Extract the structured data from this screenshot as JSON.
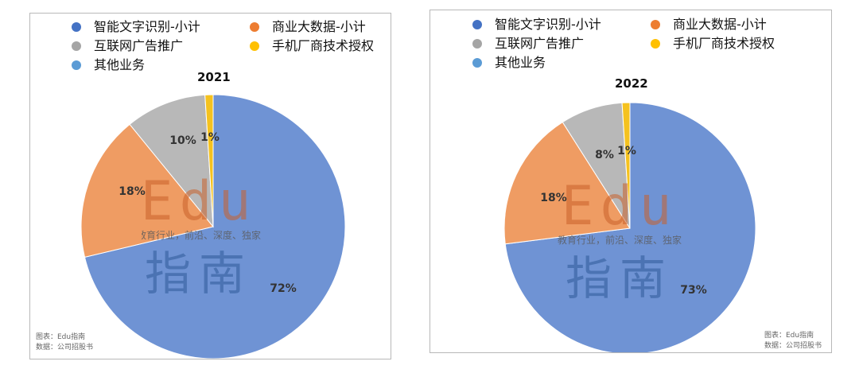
{
  "colors": {
    "slice_1": "#6f93d4",
    "slice_2": "#ef9c63",
    "slice_3": "#b8b8b8",
    "slice_4": "#f5c21f",
    "dot_1": "#4472c4",
    "dot_2": "#ed7d31",
    "dot_3": "#a5a5a5",
    "dot_4": "#ffc000",
    "dot_5": "#5b9bd5"
  },
  "watermark": {
    "brand": "Edu",
    "tagline": "教育行业，前沿、深度、独家",
    "name": "指南"
  },
  "chart_data": [
    {
      "type": "pie",
      "title": "2021",
      "categories": [
        "智能文字识别-小计",
        "商业大数据-小计",
        "互联网广告推广",
        "手机厂商技术授权",
        "其他业务"
      ],
      "values": [
        72,
        18,
        10,
        1,
        0
      ],
      "data_labels": [
        "72%",
        "18%",
        "10%",
        "1%",
        ""
      ],
      "legend_position": "top",
      "source_lines": [
        "图表：Edu指南",
        "数据：公司招股书"
      ]
    },
    {
      "type": "pie",
      "title": "2022",
      "categories": [
        "智能文字识别-小计",
        "商业大数据-小计",
        "互联网广告推广",
        "手机厂商技术授权",
        "其他业务"
      ],
      "values": [
        73,
        18,
        8,
        1,
        0
      ],
      "data_labels": [
        "73%",
        "18%",
        "8%",
        "1%",
        ""
      ],
      "legend_position": "top",
      "source_lines": [
        "图表：Edu指南",
        "数据：公司招股书"
      ]
    }
  ]
}
